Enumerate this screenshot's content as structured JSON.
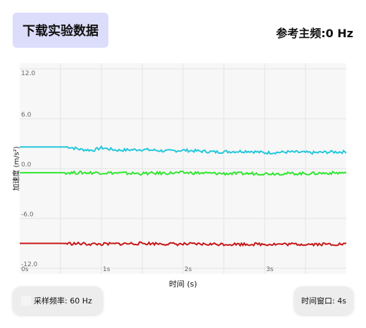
{
  "header": {
    "download_button": "下载实验数据",
    "reference_frequency": "参考主频:0 Hz"
  },
  "footer": {
    "sample_rate": "采样频率: 60 Hz",
    "time_window": "时间窗口: 4s"
  },
  "chart_data": {
    "type": "line",
    "xlabel": "时间 (s)",
    "ylabel": "加速度 (m/s²)",
    "ylim": [
      -12,
      12
    ],
    "xlim": [
      0,
      4
    ],
    "y_ticks": [
      "12.0",
      "6.0",
      "0.0",
      "-6.0",
      "-12.0"
    ],
    "x_ticks": [
      "0s",
      "1s",
      "2s",
      "3s"
    ],
    "grid": true,
    "series": [
      {
        "color": "#22c7dc",
        "x": [
          0,
          0.6,
          0.75,
          0.9,
          1.0,
          1.2,
          1.5,
          1.8,
          2.0,
          2.4,
          2.8,
          3.0,
          3.3,
          3.6,
          3.8,
          4.0
        ],
        "values": [
          2.6,
          2.6,
          2.3,
          2.2,
          2.5,
          2.2,
          2.3,
          2.1,
          2.2,
          2.0,
          2.1,
          1.9,
          2.0,
          1.9,
          2.0,
          2.0
        ]
      },
      {
        "color": "#2ee62e",
        "x": [
          0,
          0.5,
          1.0,
          1.5,
          2.0,
          2.5,
          3.0,
          3.5,
          4.0
        ],
        "values": [
          -0.5,
          -0.5,
          -0.5,
          -0.6,
          -0.5,
          -0.6,
          -0.6,
          -0.6,
          -0.5
        ]
      },
      {
        "color": "#c81414",
        "x": [
          0,
          0.5,
          1.0,
          1.5,
          2.0,
          2.5,
          3.0,
          3.5,
          4.0
        ],
        "values": [
          -9.0,
          -9.0,
          -9.1,
          -9.0,
          -9.1,
          -9.1,
          -9.1,
          -9.1,
          -9.1
        ]
      }
    ]
  }
}
